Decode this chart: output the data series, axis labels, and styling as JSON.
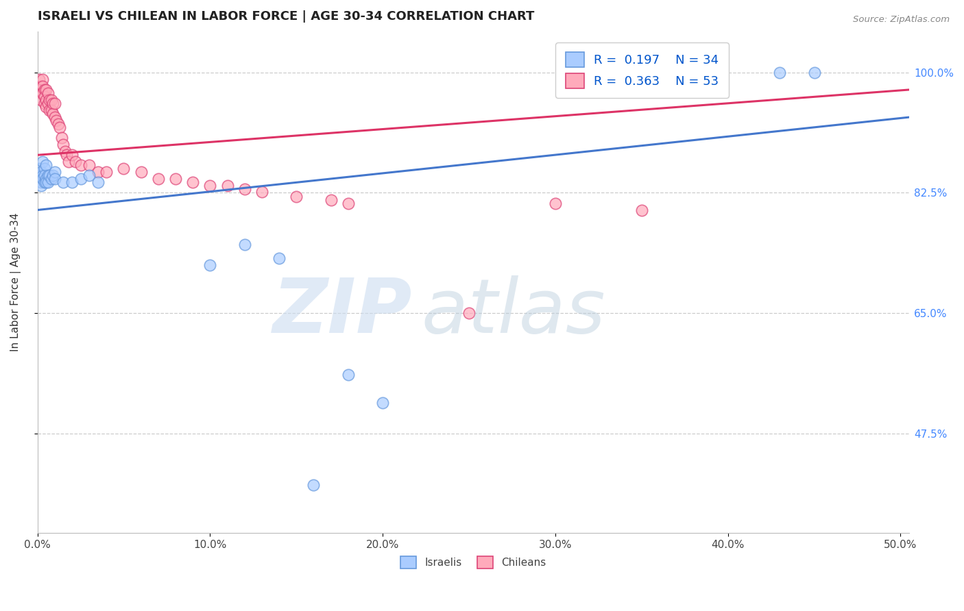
{
  "title": "ISRAELI VS CHILEAN IN LABOR FORCE | AGE 30-34 CORRELATION CHART",
  "source": "Source: ZipAtlas.com",
  "ylabel_label": "In Labor Force | Age 30-34",
  "ytick_labels": [
    "47.5%",
    "65.0%",
    "82.5%",
    "100.0%"
  ],
  "ytick_values": [
    0.475,
    0.65,
    0.825,
    1.0
  ],
  "xlim": [
    0.0,
    0.505
  ],
  "ylim": [
    0.33,
    1.06
  ],
  "r_israeli": "0.197",
  "n_israeli": "34",
  "r_chilean": "0.363",
  "n_chilean": "53",
  "israeli_fill": "#aaccff",
  "israeli_edge": "#6699dd",
  "chilean_fill": "#ffaabb",
  "chilean_edge": "#dd4477",
  "trend_israeli_color": "#4477cc",
  "trend_chilean_color": "#dd3366",
  "background_color": "#ffffff",
  "legend_entries": [
    "Israelis",
    "Chileans"
  ],
  "israeli_x": [
    0.001,
    0.001,
    0.002,
    0.002,
    0.002,
    0.003,
    0.003,
    0.003,
    0.004,
    0.004,
    0.004,
    0.005,
    0.005,
    0.005,
    0.006,
    0.006,
    0.007,
    0.008,
    0.009,
    0.01,
    0.01,
    0.015,
    0.02,
    0.025,
    0.03,
    0.035,
    0.1,
    0.12,
    0.14,
    0.16,
    0.43,
    0.45,
    0.18,
    0.2
  ],
  "israeli_y": [
    0.86,
    0.85,
    0.855,
    0.84,
    0.835,
    0.87,
    0.85,
    0.845,
    0.86,
    0.85,
    0.84,
    0.865,
    0.845,
    0.84,
    0.85,
    0.84,
    0.85,
    0.845,
    0.85,
    0.855,
    0.845,
    0.84,
    0.84,
    0.845,
    0.85,
    0.84,
    0.72,
    0.75,
    0.73,
    0.4,
    1.0,
    1.0,
    0.56,
    0.52
  ],
  "chilean_x": [
    0.001,
    0.001,
    0.002,
    0.002,
    0.002,
    0.003,
    0.003,
    0.003,
    0.004,
    0.004,
    0.004,
    0.005,
    0.005,
    0.005,
    0.006,
    0.006,
    0.007,
    0.007,
    0.008,
    0.008,
    0.009,
    0.009,
    0.01,
    0.01,
    0.011,
    0.012,
    0.013,
    0.014,
    0.015,
    0.016,
    0.017,
    0.018,
    0.02,
    0.022,
    0.025,
    0.03,
    0.035,
    0.04,
    0.05,
    0.06,
    0.07,
    0.08,
    0.09,
    0.1,
    0.11,
    0.12,
    0.13,
    0.15,
    0.17,
    0.18,
    0.25,
    0.3,
    0.35
  ],
  "chilean_y": [
    0.98,
    0.99,
    0.98,
    0.97,
    0.96,
    0.99,
    0.98,
    0.97,
    0.975,
    0.965,
    0.955,
    0.975,
    0.96,
    0.95,
    0.97,
    0.955,
    0.96,
    0.945,
    0.96,
    0.945,
    0.955,
    0.94,
    0.955,
    0.935,
    0.93,
    0.925,
    0.92,
    0.905,
    0.895,
    0.885,
    0.88,
    0.87,
    0.88,
    0.87,
    0.865,
    0.865,
    0.855,
    0.855,
    0.86,
    0.855,
    0.845,
    0.845,
    0.84,
    0.835,
    0.835,
    0.83,
    0.826,
    0.82,
    0.815,
    0.81,
    0.65,
    0.81,
    0.8
  ],
  "trend_israeli_x0": 0.0,
  "trend_israeli_y0": 0.8,
  "trend_israeli_x1": 0.505,
  "trend_israeli_y1": 0.935,
  "trend_chilean_x0": 0.0,
  "trend_chilean_y0": 0.88,
  "trend_chilean_x1": 0.505,
  "trend_chilean_y1": 0.975
}
